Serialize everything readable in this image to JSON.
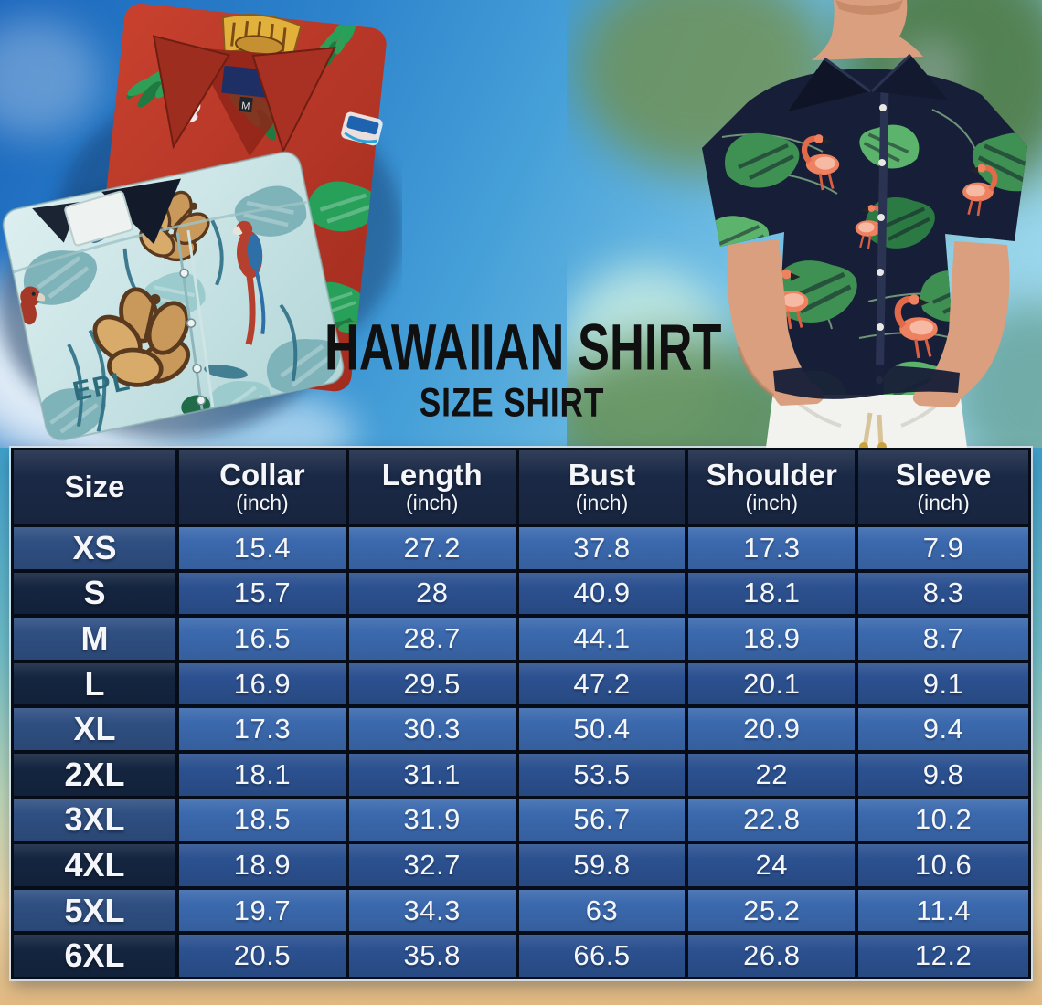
{
  "page": {
    "title": "HAWAIIAN SHIRT",
    "subtitle": "SIZE SHIRT"
  },
  "photo_text": {
    "red_shirt_size_label": "M",
    "teal_shirt_print": "EPL"
  },
  "chart_data": {
    "type": "table",
    "title": "Hawaiian Shirt Size Chart",
    "unit": "inch",
    "header": [
      {
        "label": "Size",
        "sub": ""
      },
      {
        "label": "Collar",
        "sub": "(inch)"
      },
      {
        "label": "Length",
        "sub": "(inch)"
      },
      {
        "label": "Bust",
        "sub": "(inch)"
      },
      {
        "label": "Shoulder",
        "sub": "(inch)"
      },
      {
        "label": "Sleeve",
        "sub": "(inch)"
      }
    ],
    "rows": [
      {
        "size": "XS",
        "collar": 15.4,
        "length": 27.2,
        "bust": 37.8,
        "shoulder": 17.3,
        "sleeve": 7.9
      },
      {
        "size": "S",
        "collar": 15.7,
        "length": 28,
        "bust": 40.9,
        "shoulder": 18.1,
        "sleeve": 8.3
      },
      {
        "size": "M",
        "collar": 16.5,
        "length": 28.7,
        "bust": 44.1,
        "shoulder": 18.9,
        "sleeve": 8.7
      },
      {
        "size": "L",
        "collar": 16.9,
        "length": 29.5,
        "bust": 47.2,
        "shoulder": 20.1,
        "sleeve": 9.1
      },
      {
        "size": "XL",
        "collar": 17.3,
        "length": 30.3,
        "bust": 50.4,
        "shoulder": 20.9,
        "sleeve": 9.4
      },
      {
        "size": "2XL",
        "collar": 18.1,
        "length": 31.1,
        "bust": 53.5,
        "shoulder": 22,
        "sleeve": 9.8
      },
      {
        "size": "3XL",
        "collar": 18.5,
        "length": 31.9,
        "bust": 56.7,
        "shoulder": 22.8,
        "sleeve": 10.2
      },
      {
        "size": "4XL",
        "collar": 18.9,
        "length": 32.7,
        "bust": 59.8,
        "shoulder": 24,
        "sleeve": 10.6
      },
      {
        "size": "5XL",
        "collar": 19.7,
        "length": 34.3,
        "bust": 63,
        "shoulder": 25.2,
        "sleeve": 11.4
      },
      {
        "size": "6XL",
        "collar": 20.5,
        "length": 35.8,
        "bust": 66.5,
        "shoulder": 26.8,
        "sleeve": 12.2
      }
    ]
  },
  "colors": {
    "table_header_bg": "#1a2946",
    "row_blue_light": "#3b69ae",
    "row_blue_dark": "#2c5190",
    "size_col_light": "#2f4f82",
    "size_col_dark": "#142540",
    "grid_line": "#070d18",
    "text_white": "#f4f6fa",
    "title_black": "#101010",
    "sand": "#e2b981"
  }
}
